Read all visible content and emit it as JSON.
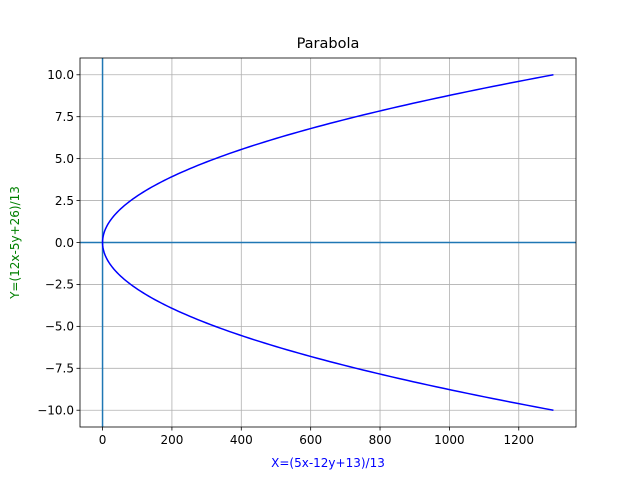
{
  "chart_data": {
    "type": "line",
    "title": "Parabola",
    "xlabel": "X=(5x-12y+13)/13",
    "ylabel": "Y=(12x-5y+26)/13",
    "xlabel_color": "#0000ff",
    "ylabel_color": "#008000",
    "xlim": [
      -65,
      1365
    ],
    "ylim": [
      -11,
      11
    ],
    "xticks": [
      0,
      200,
      400,
      600,
      800,
      1000,
      1200
    ],
    "xtick_labels": [
      "0",
      "200",
      "400",
      "600",
      "800",
      "1000",
      "1200"
    ],
    "yticks": [
      -10,
      -7.5,
      -5,
      -2.5,
      0,
      2.5,
      5,
      7.5,
      10
    ],
    "ytick_labels": [
      "−10.0",
      "−7.5",
      "−5.0",
      "−2.5",
      "0.0",
      "2.5",
      "5.0",
      "7.5",
      "10.0"
    ],
    "grid": true,
    "series": [
      {
        "color": "#0000ff",
        "equation": "X = 13 * Y^2",
        "x": [
          1300,
          1053,
          832,
          637,
          468,
          325,
          208,
          117,
          52,
          13,
          3.25,
          0,
          3.25,
          13,
          52,
          117,
          208,
          325,
          468,
          637,
          832,
          1053,
          1300
        ],
        "y": [
          -10,
          -9,
          -8,
          -7,
          -6,
          -5,
          -4,
          -3,
          -2,
          -1,
          -0.5,
          0,
          0.5,
          1,
          2,
          3,
          4,
          5,
          6,
          7,
          8,
          9,
          10
        ]
      }
    ],
    "reference_lines": [
      {
        "orientation": "horizontal",
        "value": 0,
        "color": "#1f77b4"
      },
      {
        "orientation": "vertical",
        "value": 0,
        "color": "#1f77b4"
      }
    ]
  }
}
